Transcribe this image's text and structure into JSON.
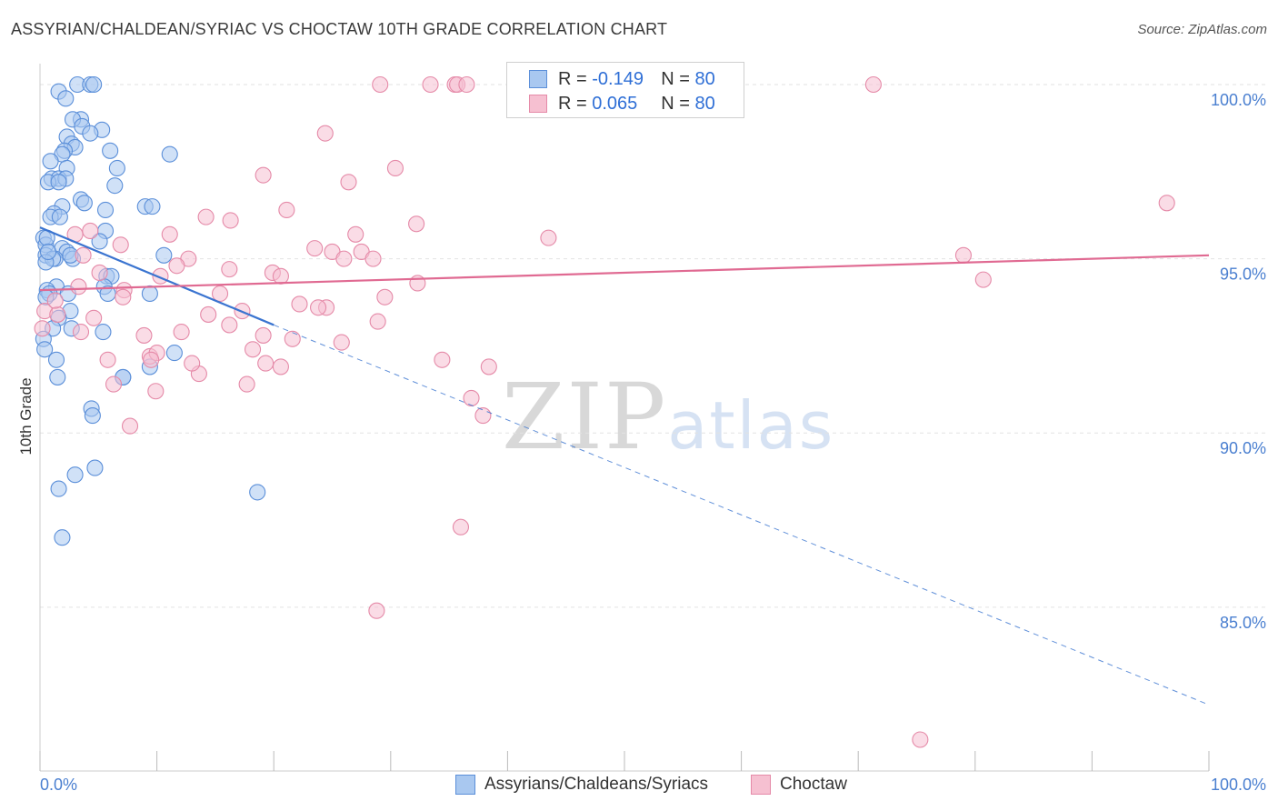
{
  "title": "ASSYRIAN/CHALDEAN/SYRIAC VS CHOCTAW 10TH GRADE CORRELATION CHART",
  "source": "Source: ZipAtlas.com",
  "watermark": {
    "zip": "ZIP",
    "atlas": "atlas"
  },
  "legend": {
    "r_label": "R =",
    "n_label": "N =",
    "rows": [
      {
        "r": "-0.149",
        "n": "80"
      },
      {
        "r": "0.065",
        "n": "80"
      }
    ]
  },
  "bottom_legend": [
    "Assyrians/Chaldeans/Syriacs",
    "Choctaw"
  ],
  "colors": {
    "blue_fill": "#a9c8f0",
    "blue_stroke": "#5b8fd9",
    "blue_line": "#3a74d0",
    "pink_fill": "#f6c0d1",
    "pink_stroke": "#e58aa8",
    "pink_line": "#e06a92",
    "grid": "#e2e2e2",
    "tick_text": "#4a7fd0"
  },
  "chart_data": {
    "type": "scatter",
    "title": "ASSYRIAN/CHALDEAN/SYRIAC VS CHOCTAW 10TH GRADE CORRELATION CHART",
    "xlabel": "",
    "ylabel": "10th Grade",
    "xlim": [
      0,
      100
    ],
    "ylim": [
      80.3,
      100.6
    ],
    "x_tick_labels": [
      {
        "value": 0,
        "label": "0.0%"
      },
      {
        "value": 100,
        "label": "100.0%"
      }
    ],
    "y_ticks": [
      {
        "value": 85,
        "label": "85.0%"
      },
      {
        "value": 90,
        "label": "90.0%"
      },
      {
        "value": 95,
        "label": "95.0%"
      },
      {
        "value": 100,
        "label": "100.0%"
      }
    ],
    "grid": true,
    "series": [
      {
        "name": "Assyrians/Chaldeans/Syriacs",
        "r": -0.149,
        "n": 80,
        "trend": {
          "x0": 0,
          "y0": 95.9,
          "x1": 20,
          "y1": 93.1,
          "dash_to_x": 100,
          "dash_to_y": 82.2
        },
        "points": [
          [
            3.2,
            100
          ],
          [
            4.3,
            100
          ],
          [
            4.6,
            100
          ],
          [
            1.6,
            99.8
          ],
          [
            2.2,
            99.6
          ],
          [
            3.5,
            99.0
          ],
          [
            2.8,
            99.0
          ],
          [
            3.6,
            98.8
          ],
          [
            5.3,
            98.7
          ],
          [
            4.3,
            98.6
          ],
          [
            2.3,
            98.5
          ],
          [
            2.7,
            98.3
          ],
          [
            3.0,
            98.2
          ],
          [
            6.0,
            98.1
          ],
          [
            2.1,
            98.1
          ],
          [
            1.9,
            98.0
          ],
          [
            11.1,
            98.0
          ],
          [
            0.9,
            97.8
          ],
          [
            2.3,
            97.6
          ],
          [
            6.6,
            97.6
          ],
          [
            1.0,
            97.3
          ],
          [
            1.6,
            97.3
          ],
          [
            2.2,
            97.3
          ],
          [
            0.7,
            97.2
          ],
          [
            1.6,
            97.2
          ],
          [
            6.4,
            97.1
          ],
          [
            3.5,
            96.7
          ],
          [
            3.8,
            96.6
          ],
          [
            1.9,
            96.5
          ],
          [
            9.0,
            96.5
          ],
          [
            9.6,
            96.5
          ],
          [
            5.6,
            96.4
          ],
          [
            1.2,
            96.3
          ],
          [
            0.9,
            96.2
          ],
          [
            1.7,
            96.2
          ],
          [
            5.6,
            95.8
          ],
          [
            0.3,
            95.6
          ],
          [
            5.1,
            95.5
          ],
          [
            0.5,
            95.4
          ],
          [
            1.9,
            95.3
          ],
          [
            2.3,
            95.2
          ],
          [
            10.6,
            95.1
          ],
          [
            0.5,
            95.1
          ],
          [
            1.3,
            95.0
          ],
          [
            2.8,
            95.0
          ],
          [
            1.1,
            95.0
          ],
          [
            0.5,
            94.9
          ],
          [
            5.7,
            94.5
          ],
          [
            6.1,
            94.5
          ],
          [
            5.5,
            94.2
          ],
          [
            1.4,
            94.2
          ],
          [
            0.6,
            94.1
          ],
          [
            0.8,
            94.0
          ],
          [
            2.4,
            94.0
          ],
          [
            5.8,
            94.0
          ],
          [
            9.4,
            94.0
          ],
          [
            0.5,
            93.9
          ],
          [
            2.6,
            93.5
          ],
          [
            1.6,
            93.3
          ],
          [
            1.1,
            93.0
          ],
          [
            5.4,
            92.9
          ],
          [
            0.3,
            92.7
          ],
          [
            11.5,
            92.3
          ],
          [
            0.4,
            92.4
          ],
          [
            1.4,
            92.1
          ],
          [
            9.4,
            91.9
          ],
          [
            7.1,
            91.6
          ],
          [
            1.5,
            91.6
          ],
          [
            4.4,
            90.7
          ],
          [
            4.5,
            90.5
          ],
          [
            4.7,
            89.0
          ],
          [
            3.0,
            88.8
          ],
          [
            1.6,
            88.4
          ],
          [
            18.6,
            88.3
          ],
          [
            1.9,
            87.0
          ],
          [
            0.6,
            95.6
          ],
          [
            7.1,
            91.6
          ],
          [
            0.7,
            95.2
          ],
          [
            2.6,
            95.1
          ],
          [
            2.7,
            93.0
          ]
        ]
      },
      {
        "name": "Choctaw",
        "r": 0.065,
        "n": 80,
        "trend": {
          "x0": 0,
          "y0": 94.1,
          "x1": 100,
          "y1": 95.1
        },
        "points": [
          [
            29.1,
            100
          ],
          [
            33.4,
            100
          ],
          [
            35.5,
            100
          ],
          [
            35.7,
            100
          ],
          [
            36.5,
            100
          ],
          [
            71.3,
            100
          ],
          [
            24.4,
            98.6
          ],
          [
            30.4,
            97.6
          ],
          [
            19.1,
            97.4
          ],
          [
            26.4,
            97.2
          ],
          [
            96.4,
            96.6
          ],
          [
            21.1,
            96.4
          ],
          [
            14.2,
            96.2
          ],
          [
            16.3,
            96.1
          ],
          [
            32.2,
            96.0
          ],
          [
            11.1,
            95.7
          ],
          [
            4.3,
            95.8
          ],
          [
            27.0,
            95.7
          ],
          [
            3.0,
            95.7
          ],
          [
            43.5,
            95.6
          ],
          [
            6.9,
            95.4
          ],
          [
            23.5,
            95.3
          ],
          [
            25.0,
            95.2
          ],
          [
            27.5,
            95.2
          ],
          [
            28.5,
            95.0
          ],
          [
            12.7,
            95.0
          ],
          [
            3.7,
            95.1
          ],
          [
            79.0,
            95.1
          ],
          [
            16.2,
            94.7
          ],
          [
            19.9,
            94.6
          ],
          [
            5.1,
            94.6
          ],
          [
            20.6,
            94.5
          ],
          [
            10.3,
            94.5
          ],
          [
            32.3,
            94.3
          ],
          [
            80.7,
            94.4
          ],
          [
            3.3,
            94.2
          ],
          [
            7.2,
            94.1
          ],
          [
            15.4,
            94.0
          ],
          [
            24.5,
            93.6
          ],
          [
            29.5,
            93.9
          ],
          [
            22.2,
            93.7
          ],
          [
            17.3,
            93.5
          ],
          [
            23.8,
            93.6
          ],
          [
            0.4,
            93.5
          ],
          [
            1.5,
            93.4
          ],
          [
            28.9,
            93.2
          ],
          [
            16.2,
            93.1
          ],
          [
            4.6,
            93.3
          ],
          [
            12.1,
            92.9
          ],
          [
            8.9,
            92.8
          ],
          [
            19.1,
            92.8
          ],
          [
            21.6,
            92.7
          ],
          [
            25.8,
            92.6
          ],
          [
            18.2,
            92.4
          ],
          [
            9.4,
            92.2
          ],
          [
            10.0,
            92.3
          ],
          [
            5.8,
            92.1
          ],
          [
            19.3,
            92.0
          ],
          [
            34.4,
            92.1
          ],
          [
            20.6,
            91.9
          ],
          [
            38.4,
            91.9
          ],
          [
            13.6,
            91.7
          ],
          [
            6.3,
            91.4
          ],
          [
            17.7,
            91.4
          ],
          [
            9.9,
            91.2
          ],
          [
            36.9,
            91.0
          ],
          [
            37.9,
            90.5
          ],
          [
            7.7,
            90.2
          ],
          [
            36.0,
            87.3
          ],
          [
            28.8,
            84.9
          ],
          [
            75.3,
            81.2
          ],
          [
            1.3,
            93.8
          ],
          [
            7.1,
            93.9
          ],
          [
            14.4,
            93.4
          ],
          [
            0.2,
            93.0
          ],
          [
            3.5,
            92.9
          ],
          [
            13.0,
            92.0
          ],
          [
            9.5,
            92.1
          ],
          [
            26.0,
            95.0
          ],
          [
            11.7,
            94.8
          ]
        ]
      }
    ]
  }
}
